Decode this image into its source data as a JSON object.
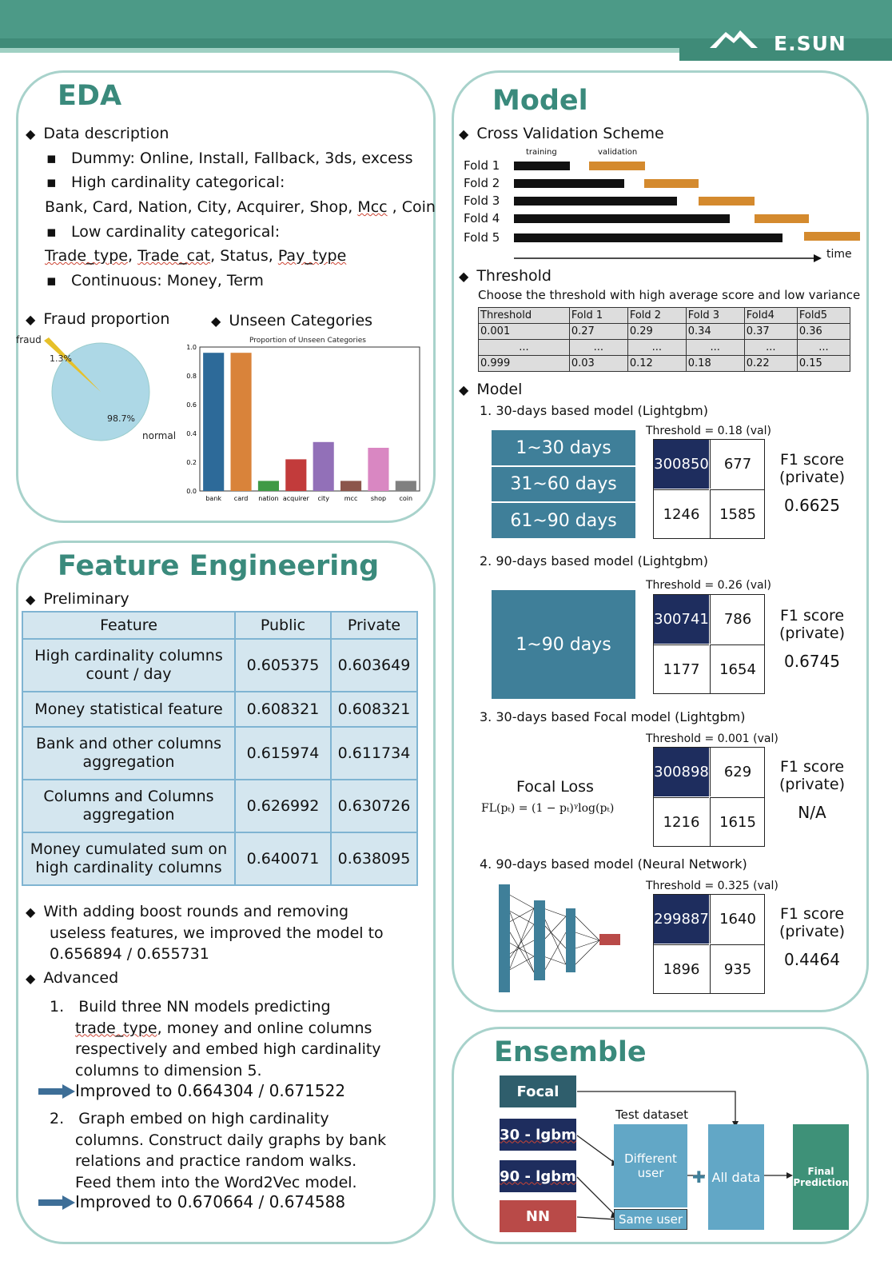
{
  "brand": {
    "name": "E.SUN"
  },
  "eda": {
    "title": "EDA",
    "data_description": "Data description",
    "dummy_label": "Dummy: ",
    "dummy_value": "Online, Install, Fallback, 3ds, excess",
    "high_card": "High cardinality categorical:",
    "high_card_cols": "Bank, Card, Nation, City, Acquirer, Shop, ",
    "high_card_mcc": "Mcc",
    "high_card_tail": " , Coin",
    "low_card": "Low cardinality categorical:",
    "low_card_cols_a": "Trade_type",
    "low_card_cols_b": ", ",
    "low_card_cols_c": "Trade_cat",
    "low_card_cols_d": ", Status, ",
    "low_card_cols_e": "Pay_type",
    "continuous": "Continuous: Money, Term",
    "fraud_proportion": "Fraud proportion",
    "unseen": "Unseen Categories",
    "pie": {
      "fraud_label": "fraud",
      "fraud_pct": "1.3%",
      "normal_label": "normal",
      "normal_pct": "98.7%",
      "fraud": 1.3,
      "normal": 98.7
    }
  },
  "chart_data": {
    "type": "bar",
    "title": "Proportion of Unseen Categories",
    "categories": [
      "bank",
      "card",
      "nation",
      "acquirer",
      "city",
      "mcc",
      "shop",
      "coin"
    ],
    "values": [
      0.96,
      0.96,
      0.07,
      0.22,
      0.34,
      0.07,
      0.3,
      0.07
    ],
    "colors": [
      "#2d6a99",
      "#d9833a",
      "#3f9a46",
      "#c23b3b",
      "#9270b8",
      "#8c564b",
      "#d987c2",
      "#808080"
    ],
    "yticks": [
      "0.0",
      "0.2",
      "0.4",
      "0.6",
      "0.8",
      "1.0"
    ],
    "ylim": [
      0,
      1.0
    ]
  },
  "fe": {
    "title": "Feature Engineering",
    "preliminary": "Preliminary",
    "headers": [
      "Feature",
      "Public",
      "Private"
    ],
    "rows": [
      {
        "f1": "High cardinality columns",
        "f2": "count / day",
        "pub": "0.605375",
        "pri": "0.603649"
      },
      {
        "f1": "Money statistical feature",
        "f2": "",
        "pub": "0.608321",
        "pri": "0.608321"
      },
      {
        "f1": "Bank and other columns",
        "f2": "aggregation",
        "pub": "0.615974",
        "pri": "0.611734"
      },
      {
        "f1": "Columns and Columns",
        "f2": "aggregation",
        "pub": "0.626992",
        "pri": "0.630726"
      },
      {
        "f1": "Money cumulated sum on",
        "f2": "high cardinality columns",
        "pub": "0.640071",
        "pri": "0.638095"
      }
    ],
    "boost1": "With adding boost rounds and removing",
    "boost2": "useless features, we improved the model to",
    "boost3": "0.656894 / 0.655731",
    "advanced": "Advanced",
    "a1_1": "Build three NN models predicting",
    "a1_2a": "trade_type",
    "a1_2b": ", money and online columns",
    "a1_3": "respectively and embed high cardinality",
    "a1_4": "columns to dimension 5.",
    "a1_imp": "Improved to  0.664304 / 0.671522",
    "a2_1": "Graph embed on high cardinality",
    "a2_2": "columns. Construct daily graphs by bank",
    "a2_3": "relations and practice random walks.",
    "a2_4": "Feed them into the Word2Vec model.",
    "a2_imp": "Improved to 0.670664 / 0.674588"
  },
  "model": {
    "title": "Model",
    "cv": "Cross Validation Scheme",
    "cv_training": "training",
    "cv_validation": "validation",
    "folds": [
      "Fold 1",
      "Fold 2",
      "Fold 3",
      "Fold 4",
      "Fold 5"
    ],
    "time": "time",
    "threshold": "Threshold",
    "threshold_desc": "Choose the threshold with high average score and low variance",
    "thr_header": [
      "Threshold",
      "Fold 1",
      "Fold 2",
      "Fold 3",
      "Fold4",
      "Fold5"
    ],
    "thr_row1": [
      "0.001",
      "0.27",
      "0.29",
      "0.34",
      "0.37",
      "0.36"
    ],
    "thr_row2": [
      "...",
      "...",
      "...",
      "...",
      "...",
      "..."
    ],
    "thr_row3": [
      "0.999",
      "0.03",
      "0.12",
      "0.18",
      "0.22",
      "0.15"
    ],
    "model_head": "Model",
    "m1": "1.  30-days based model (Lightgbm)",
    "m1_days": [
      "1~30  days",
      "31~60  days",
      "61~90  days"
    ],
    "m1_thr": "Threshold = 0.18 (val)",
    "m1_cm": [
      "300850",
      "677",
      "1246",
      "1585"
    ],
    "m1_f1": "0.6625",
    "m2": "2.  90-days based model (Lightgbm)",
    "m2_days": "1~90  days",
    "m2_thr": "Threshold = 0.26 (val)",
    "m2_cm": [
      "300741",
      "786",
      "1177",
      "1654"
    ],
    "m2_f1": "0.6745",
    "m3": "3.  30-days based Focal model (Lightgbm)",
    "m3_focal": "Focal Loss",
    "m3_formula": "FL(pₜ) = (1 − pₜ)ᵞlog(pₜ)",
    "m3_thr": "Threshold = 0.001 (val)",
    "m3_cm": [
      "300898",
      "629",
      "1216",
      "1615"
    ],
    "m3_f1": "N/A",
    "m4": "4.  90-days based model (Neural Network)",
    "m4_thr": "Threshold = 0.325 (val)",
    "m4_cm": [
      "299887",
      "1640",
      "1896",
      "935"
    ],
    "m4_f1": "0.4464",
    "f1_label1": "F1 score",
    "f1_label2": "(private)"
  },
  "ensemble": {
    "title": "Ensemble",
    "focal": "Focal",
    "lgbm30": "30 - lgbm",
    "lgbm90": "90 - lgbm",
    "nn": "NN",
    "test": "Test dataset",
    "different": "Different user",
    "same": "Same user",
    "all": "All data",
    "final": "Final Prediction"
  },
  "colors": {
    "teal": "#3a8a7c",
    "navy": "#1e2d5e",
    "steel": "#3f7f99",
    "nnred": "#b94a48"
  }
}
